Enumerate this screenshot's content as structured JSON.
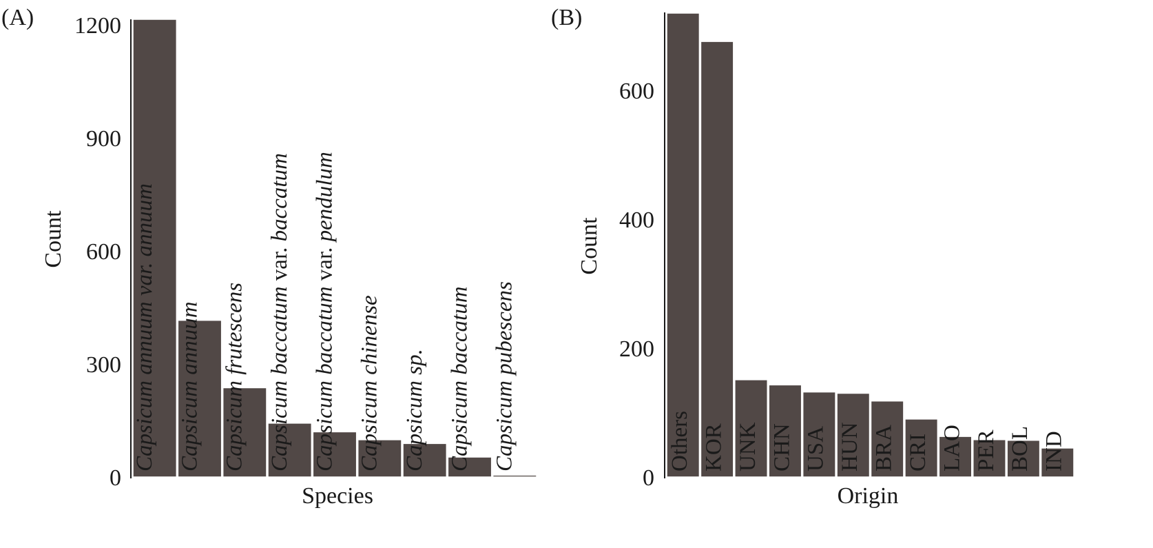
{
  "colors": {
    "bar": "#514846",
    "bar_outline": "#ffffff",
    "text": "#1a1a1a"
  },
  "chart_data": [
    {
      "type": "bar",
      "panel": "(A)",
      "xlabel": "Species",
      "ylabel": "Count",
      "ylim": [
        0,
        1215
      ],
      "yticks": [
        0,
        300,
        600,
        900,
        1200
      ],
      "bar_label_style": "italic-species",
      "categories": [
        "Capsicum annuum var. annuum",
        "Capsicum annuum",
        "Capsicum frutescens",
        "Capsicum baccatum var. baccatum",
        "Capsicum baccatum var. pendulum",
        "Capsicum chinense",
        "Capsicum sp.",
        "Capsicum baccatum",
        "Capsicum pubescens"
      ],
      "values": [
        1215,
        416,
        237,
        143,
        120,
        99,
        89,
        53,
        5
      ]
    },
    {
      "type": "bar",
      "panel": "(B)",
      "xlabel": "Origin",
      "ylabel": "Count",
      "ylim": [
        0,
        720
      ],
      "yticks": [
        0,
        200,
        400,
        600
      ],
      "bar_label_style": "upright",
      "categories": [
        "Others",
        "KOR",
        "UNK",
        "CHN",
        "USA",
        "HUN",
        "BRA",
        "CRI",
        "LAO",
        "PER",
        "BOL",
        "IND"
      ],
      "values": [
        720,
        676,
        151,
        143,
        132,
        130,
        118,
        90,
        63,
        58,
        57,
        45
      ]
    }
  ]
}
